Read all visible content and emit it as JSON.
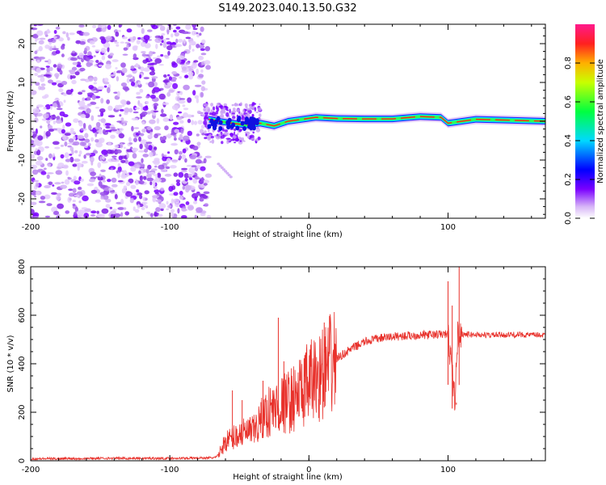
{
  "title": "S149.2023.040.13.50.G32",
  "chart_data": [
    {
      "type": "heatmap",
      "xlabel": "Height of straight line (km)",
      "ylabel": "Frequency (Hz)",
      "xlim": [
        -200,
        170
      ],
      "ylim": [
        -25,
        25
      ],
      "xticks": [
        -200,
        -100,
        0,
        100
      ],
      "yticks": [
        20,
        10,
        0,
        -10,
        -20
      ],
      "noise_region_x": [
        -200,
        -72
      ],
      "signal_track": [
        {
          "x": -72,
          "f": 0.5
        },
        {
          "x": -65,
          "f": 0.0
        },
        {
          "x": -55,
          "f": -0.5
        },
        {
          "x": -45,
          "f": -1.0
        },
        {
          "x": -35,
          "f": -0.5
        },
        {
          "x": -25,
          "f": -1.2
        },
        {
          "x": -15,
          "f": 0.0
        },
        {
          "x": -5,
          "f": 0.5
        },
        {
          "x": 5,
          "f": 1.0
        },
        {
          "x": 20,
          "f": 0.7
        },
        {
          "x": 40,
          "f": 0.6
        },
        {
          "x": 60,
          "f": 0.6
        },
        {
          "x": 80,
          "f": 1.2
        },
        {
          "x": 95,
          "f": 1.0
        },
        {
          "x": 100,
          "f": -0.5
        },
        {
          "x": 120,
          "f": 0.5
        },
        {
          "x": 150,
          "f": 0.2
        },
        {
          "x": 170,
          "f": 0.0
        }
      ],
      "colorbar": {
        "label": "Normalized spectral amplitude",
        "range": [
          0,
          1
        ],
        "ticks": [
          0.0,
          0.2,
          0.4,
          0.6,
          0.8
        ]
      }
    },
    {
      "type": "line",
      "xlabel": "Height of straight line (km)",
      "ylabel": "SNR (10 * v/v)",
      "xlim": [
        -200,
        170
      ],
      "ylim": [
        0,
        800
      ],
      "xticks": [
        -200,
        -100,
        0,
        100
      ],
      "yticks": [
        0,
        200,
        400,
        600,
        800
      ],
      "series": [
        {
          "name": "SNR",
          "color": "#e8312b",
          "points": [
            [
              -200,
              8
            ],
            [
              -150,
              10
            ],
            [
              -100,
              10
            ],
            [
              -70,
              12
            ],
            [
              -66,
              15
            ],
            [
              -60,
              80
            ],
            [
              -50,
              110
            ],
            [
              -40,
              120
            ],
            [
              -30,
              200
            ],
            [
              -20,
              230
            ],
            [
              -10,
              260
            ],
            [
              0,
              320
            ],
            [
              10,
              360
            ],
            [
              20,
              420
            ],
            [
              30,
              460
            ],
            [
              40,
              490
            ],
            [
              50,
              505
            ],
            [
              60,
              512
            ],
            [
              70,
              515
            ],
            [
              80,
              518
            ],
            [
              90,
              520
            ],
            [
              100,
              522
            ],
            [
              105,
              250
            ],
            [
              107,
              520
            ],
            [
              110,
              522
            ],
            [
              130,
              518
            ],
            [
              150,
              520
            ],
            [
              170,
              518
            ]
          ],
          "spikes": [
            [
              -55,
              290
            ],
            [
              -48,
              250
            ],
            [
              -33,
              330
            ],
            [
              -22,
              590
            ],
            [
              -18,
              410
            ],
            [
              -3,
              400
            ],
            [
              11,
              570
            ],
            [
              100,
              740
            ],
            [
              103,
              640
            ],
            [
              106,
              240
            ],
            [
              108,
              800
            ]
          ]
        }
      ]
    }
  ]
}
